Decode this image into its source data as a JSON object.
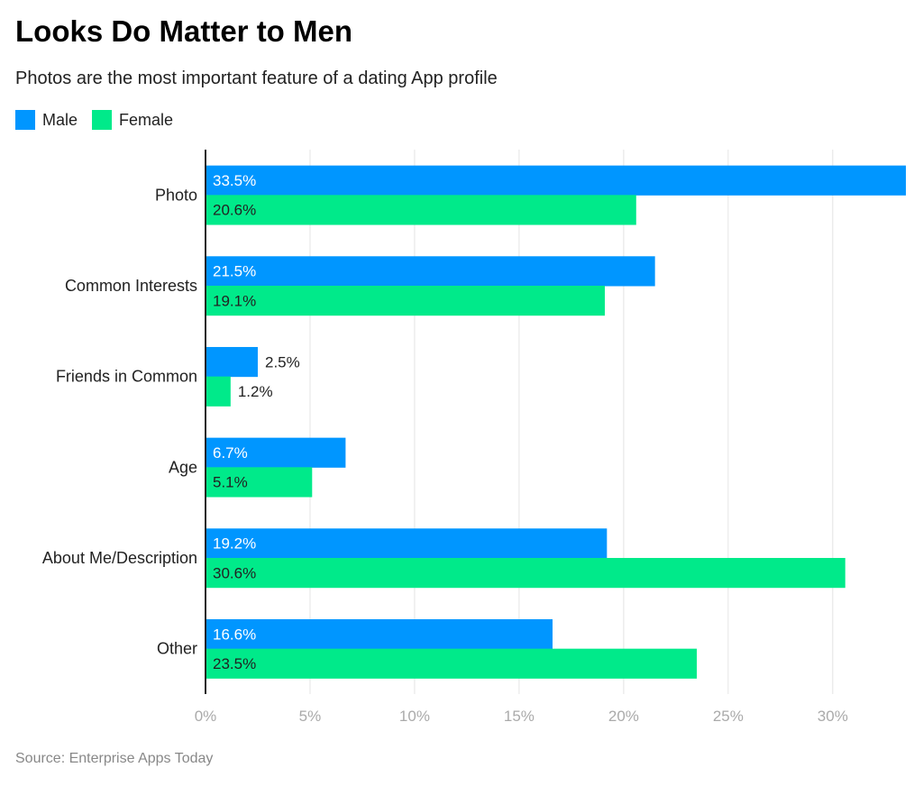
{
  "chart_data": {
    "type": "bar",
    "orientation": "horizontal",
    "title": "Looks Do Matter to Men",
    "subtitle": "Photos are the most important feature of a dating App profile",
    "categories": [
      "Photo",
      "Common Interests",
      "Friends in Common",
      "Age",
      "About Me/Description",
      "Other"
    ],
    "series": [
      {
        "name": "Male",
        "color": "#0096ff",
        "values": [
          33.5,
          21.5,
          2.5,
          6.7,
          19.2,
          16.6
        ],
        "labels": [
          "33.5%",
          "21.5%",
          "2.5%",
          "6.7%",
          "19.2%",
          "16.6%"
        ]
      },
      {
        "name": "Female",
        "color": "#00ea8a",
        "values": [
          20.6,
          19.1,
          1.2,
          5.1,
          30.6,
          23.5
        ],
        "labels": [
          "20.6%",
          "19.1%",
          "1.2%",
          "5.1%",
          "30.6%",
          "23.5%"
        ]
      }
    ],
    "xlim": [
      0,
      33.5
    ],
    "xticks": [
      0,
      5,
      10,
      15,
      20,
      25,
      30
    ],
    "xtick_labels": [
      "0%",
      "5%",
      "10%",
      "15%",
      "20%",
      "25%",
      "30%"
    ],
    "grid": true,
    "legend_position": "top-left",
    "source": "Source: Enterprise Apps Today"
  }
}
